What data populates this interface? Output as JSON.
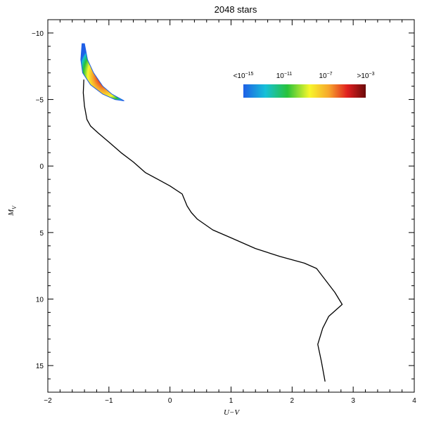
{
  "chart_data": {
    "type": "line",
    "title": "2048 stars",
    "xlabel": "U−V",
    "ylabel": "M",
    "ylabel_sub": "V",
    "xlim": [
      -2,
      4
    ],
    "ylim": [
      17,
      -11
    ],
    "y_inverted": true,
    "grid": false,
    "x_ticks": [
      {
        "value": -2,
        "label": "−2"
      },
      {
        "value": -1,
        "label": "−1"
      },
      {
        "value": 0,
        "label": "0"
      },
      {
        "value": 1,
        "label": "1"
      },
      {
        "value": 2,
        "label": "2"
      },
      {
        "value": 3,
        "label": "3"
      },
      {
        "value": 4,
        "label": "4"
      }
    ],
    "y_ticks": [
      {
        "value": -10,
        "label": "−10"
      },
      {
        "value": -5,
        "label": "−5"
      },
      {
        "value": 0,
        "label": "0"
      },
      {
        "value": 5,
        "label": "5"
      },
      {
        "value": 10,
        "label": "10"
      },
      {
        "value": 15,
        "label": "15"
      }
    ],
    "series": [
      {
        "type": "line",
        "color": "#000000",
        "points": [
          [
            -1.41,
            -6.5
          ],
          [
            -1.42,
            -5.5
          ],
          [
            -1.4,
            -4.5
          ],
          [
            -1.36,
            -3.5
          ],
          [
            -1.3,
            -3.0
          ],
          [
            -1.18,
            -2.5
          ],
          [
            -1.0,
            -1.8
          ],
          [
            -0.8,
            -1.0
          ],
          [
            -0.6,
            -0.3
          ],
          [
            -0.4,
            0.5
          ],
          [
            -0.2,
            1.0
          ],
          [
            0.0,
            1.5
          ],
          [
            0.2,
            2.1
          ],
          [
            0.28,
            3.0
          ],
          [
            0.35,
            3.5
          ],
          [
            0.45,
            4.0
          ],
          [
            0.7,
            4.8
          ],
          [
            1.0,
            5.4
          ],
          [
            1.4,
            6.2
          ],
          [
            1.8,
            6.8
          ],
          [
            2.2,
            7.3
          ],
          [
            2.4,
            7.7
          ],
          [
            2.55,
            8.6
          ],
          [
            2.7,
            9.5
          ],
          [
            2.82,
            10.4
          ],
          [
            2.6,
            11.3
          ],
          [
            2.5,
            12.2
          ],
          [
            2.42,
            13.4
          ],
          [
            2.48,
            14.7
          ],
          [
            2.54,
            16.2
          ]
        ]
      }
    ],
    "density_region": {
      "type": "density",
      "upper_edge": [
        [
          -1.4,
          -9.2
        ],
        [
          -1.35,
          -8.0
        ],
        [
          -1.25,
          -7.0
        ],
        [
          -1.1,
          -6.0
        ],
        [
          -0.95,
          -5.4
        ],
        [
          -0.75,
          -4.9
        ]
      ],
      "lower_edge": [
        [
          -0.75,
          -4.9
        ],
        [
          -0.9,
          -5.0
        ],
        [
          -1.1,
          -5.4
        ],
        [
          -1.3,
          -6.1
        ],
        [
          -1.43,
          -7.0
        ],
        [
          -1.46,
          -8.0
        ],
        [
          -1.44,
          -9.2
        ]
      ],
      "peak": [
        -1.3,
        -7.2
      ]
    },
    "colorbar": {
      "label_min": "<10",
      "label_min_exp": "−15",
      "label_2": "10",
      "label_2_exp": "−11",
      "label_3": "10",
      "label_3_exp": "−7",
      "label_max": ">10",
      "label_max_exp": "−3",
      "colors": [
        "#1e5fe6",
        "#16c0d8",
        "#28c23a",
        "#f7f72c",
        "#f7a52c",
        "#e01f1f",
        "#6a0a0a"
      ]
    }
  }
}
